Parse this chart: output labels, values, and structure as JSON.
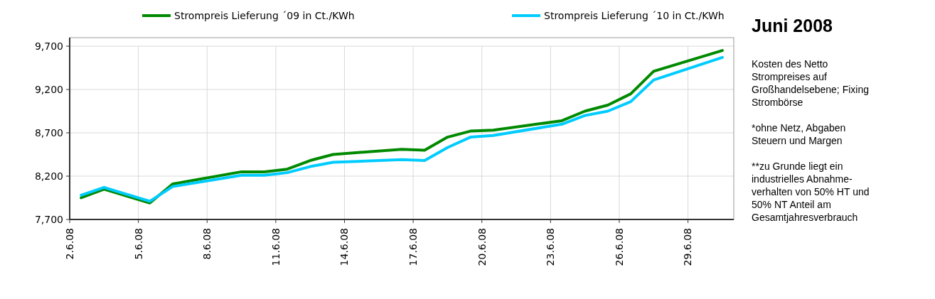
{
  "chart_data": {
    "type": "line",
    "title": "Juni 2008",
    "annotations": [
      "Kosten des Netto Strompreises auf Großhandelsebene; Fixing Strombörse",
      "*ohne Netz, Abgaben Steuern und Margen",
      "**zu Grunde liegt ein industrielles Abnahme-verhalten von 50% HT und 50% NT Anteil am Gesamtjahresverbrauch"
    ],
    "x": [
      "2008-06-02T12:00",
      "2008-06-03T12:00",
      "2008-06-05T12:00",
      "2008-06-06T12:00",
      "2008-06-09T12:00",
      "2008-06-10T12:00",
      "2008-06-11T12:00",
      "2008-06-12T12:00",
      "2008-06-13T12:00",
      "2008-06-16T12:00",
      "2008-06-17T12:00",
      "2008-06-18T12:00",
      "2008-06-19T12:00",
      "2008-06-20T12:00",
      "2008-06-23T12:00",
      "2008-06-24T12:00",
      "2008-06-25T12:00",
      "2008-06-26T12:00",
      "2008-06-27T12:00",
      "2008-06-30T12:00"
    ],
    "series": [
      {
        "name": "Strompreis Lieferung ´09 in Ct./KWh",
        "color": "#008a00",
        "values": [
          7950,
          8050,
          7890,
          8110,
          8250,
          8250,
          8280,
          8380,
          8450,
          8510,
          8500,
          8650,
          8720,
          8730,
          8840,
          8950,
          9020,
          9150,
          9410,
          9650
        ]
      },
      {
        "name": "Strompreis Lieferung ´10 in Ct./KWh",
        "color": "#00ccff",
        "values": [
          7980,
          8070,
          7910,
          8080,
          8210,
          8210,
          8240,
          8310,
          8360,
          8390,
          8380,
          8530,
          8650,
          8670,
          8800,
          8900,
          8950,
          9060,
          9310,
          9570
        ]
      }
    ],
    "xlim": [
      "2008-06-02",
      "2008-07-01"
    ],
    "xticks": [
      {
        "value": "2008-06-02",
        "label": "2.6.08"
      },
      {
        "value": "2008-06-05",
        "label": "5.6.08"
      },
      {
        "value": "2008-06-08",
        "label": "8.6.08"
      },
      {
        "value": "2008-06-11",
        "label": "11.6.08"
      },
      {
        "value": "2008-06-14",
        "label": "14.6.08"
      },
      {
        "value": "2008-06-17",
        "label": "17.6.08"
      },
      {
        "value": "2008-06-20",
        "label": "20.6.08"
      },
      {
        "value": "2008-06-23",
        "label": "23.6.08"
      },
      {
        "value": "2008-06-26",
        "label": "26.6.08"
      },
      {
        "value": "2008-06-29",
        "label": "29.6.08"
      }
    ],
    "ylim": [
      7700,
      9700
    ],
    "yticks": [
      {
        "value": 7700,
        "label": "7,700"
      },
      {
        "value": 8200,
        "label": "8,200"
      },
      {
        "value": 8700,
        "label": "8,700"
      },
      {
        "value": 9200,
        "label": "9,200"
      },
      {
        "value": 9700,
        "label": "9,700"
      }
    ],
    "grid": true,
    "legend": "top",
    "marker": "none",
    "line_style": "solid"
  }
}
